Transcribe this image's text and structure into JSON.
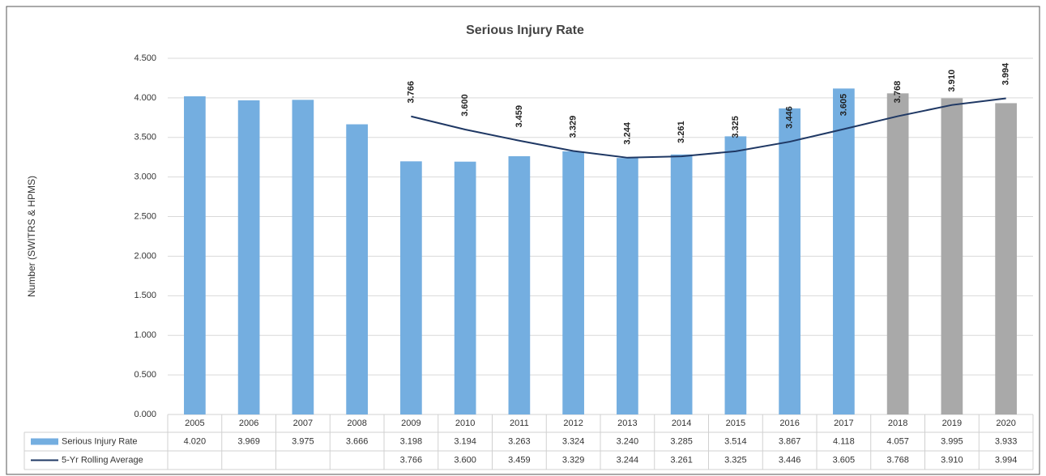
{
  "chart_data": {
    "type": "bar",
    "title": "Serious Injury Rate",
    "y_label": "Number (SWITRS & HPMS)",
    "categories": [
      "2005",
      "2006",
      "2007",
      "2008",
      "2009",
      "2010",
      "2011",
      "2012",
      "2013",
      "2014",
      "2015",
      "2016",
      "2017",
      "2018",
      "2019",
      "2020"
    ],
    "series": [
      {
        "name": "Serious Injury Rate",
        "type": "bar",
        "color": "#74aee0",
        "point_colors": [
          "#74aee0",
          "#74aee0",
          "#74aee0",
          "#74aee0",
          "#74aee0",
          "#74aee0",
          "#74aee0",
          "#74aee0",
          "#74aee0",
          "#74aee0",
          "#74aee0",
          "#74aee0",
          "#74aee0",
          "#a9a9a9",
          "#a9a9a9",
          "#a9a9a9"
        ],
        "values": [
          4.02,
          3.969,
          3.975,
          3.666,
          3.198,
          3.194,
          3.263,
          3.324,
          3.24,
          3.285,
          3.514,
          3.867,
          4.118,
          4.057,
          3.995,
          3.933
        ],
        "value_labels": [
          "4.020",
          "3.969",
          "3.975",
          "3.666",
          "3.198",
          "3.194",
          "3.263",
          "3.324",
          "3.240",
          "3.285",
          "3.514",
          "3.867",
          "4.118",
          "4.057",
          "3.995",
          "3.933"
        ]
      },
      {
        "name": "5-Yr Rolling Average",
        "type": "line",
        "color": "#1f3864",
        "values": [
          null,
          null,
          null,
          null,
          3.766,
          3.6,
          3.459,
          3.329,
          3.244,
          3.261,
          3.325,
          3.446,
          3.605,
          3.768,
          3.91,
          3.994
        ],
        "value_labels": [
          null,
          null,
          null,
          null,
          "3.766",
          "3.600",
          "3.459",
          "3.329",
          "3.244",
          "3.261",
          "3.325",
          "3.446",
          "3.605",
          "3.768",
          "3.910",
          "3.994"
        ]
      }
    ],
    "ylim": [
      0,
      4.5
    ],
    "yticks": [
      {
        "value": 0,
        "label": "0.000"
      },
      {
        "value": 0.5,
        "label": "0.500"
      },
      {
        "value": 1,
        "label": "1.000"
      },
      {
        "value": 1.5,
        "label": "1.500"
      },
      {
        "value": 2,
        "label": "2.000"
      },
      {
        "value": 2.5,
        "label": "2.500"
      },
      {
        "value": 3,
        "label": "3.000"
      },
      {
        "value": 3.5,
        "label": "3.500"
      },
      {
        "value": 4,
        "label": "4.000"
      },
      {
        "value": 4.5,
        "label": "4.500"
      }
    ],
    "grid": true
  }
}
